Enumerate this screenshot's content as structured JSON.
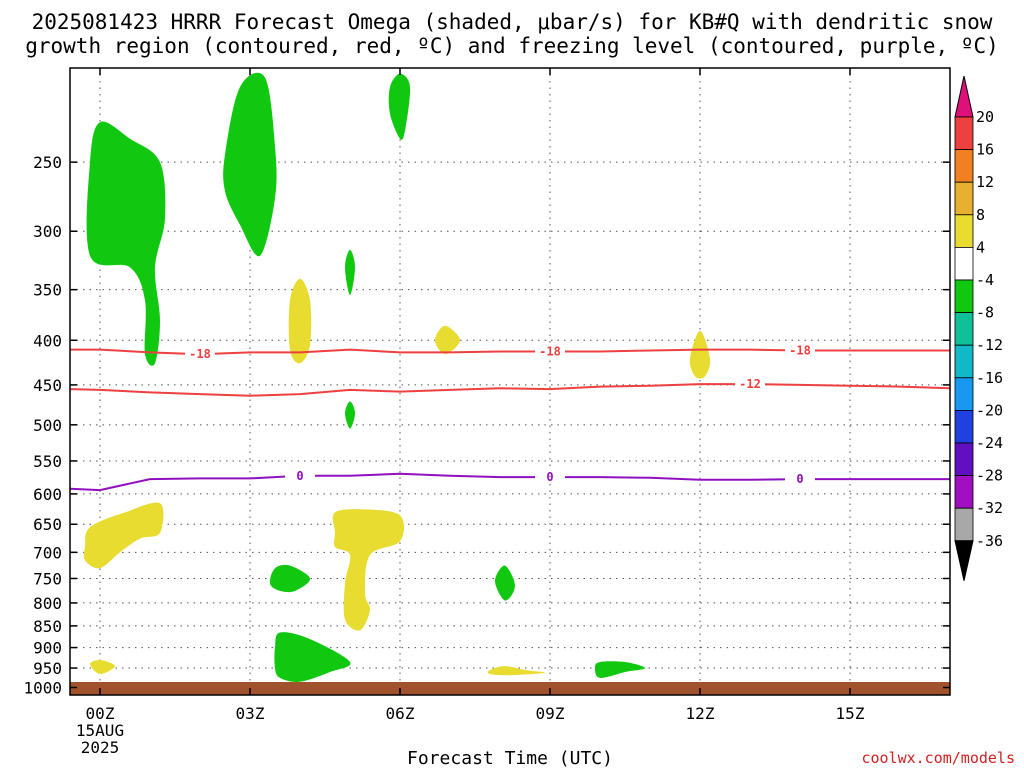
{
  "chart_data": {
    "type": "contour",
    "title_lines": [
      "2025081423 HRRR Forecast Omega (shaded, μbar/s) for KB#Q with dendritic snow",
      "growth region (contoured, red, ºC) and freezing level (contoured, purple, ºC)"
    ],
    "xlabel": "Forecast Time (UTC)",
    "x_ticks": [
      {
        "label": "00Z",
        "hour": 0,
        "sub": [
          "15AUG",
          "2025"
        ]
      },
      {
        "label": "03Z",
        "hour": 3
      },
      {
        "label": "06Z",
        "hour": 6
      },
      {
        "label": "09Z",
        "hour": 9
      },
      {
        "label": "12Z",
        "hour": 12
      },
      {
        "label": "15Z",
        "hour": 15
      }
    ],
    "xlim": [
      -0.6,
      17
    ],
    "y_scale": "log",
    "ylim": [
      1020,
      195
    ],
    "y_ticks": [
      250,
      300,
      350,
      400,
      450,
      500,
      550,
      600,
      650,
      700,
      750,
      800,
      850,
      900,
      950,
      1000
    ],
    "grid": "dotted",
    "ground_color": "#a0522d",
    "colorbar": {
      "top_arrow_color": "#e0107a",
      "bottom_arrow_color": "#000000",
      "bins": [
        {
          "from": 16,
          "to": 20,
          "color": "#ee4040"
        },
        {
          "from": 12,
          "to": 16,
          "color": "#f08020"
        },
        {
          "from": 8,
          "to": 12,
          "color": "#e8b030"
        },
        {
          "from": 4,
          "to": 8,
          "color": "#e8dc30"
        },
        {
          "from": -4,
          "to": 4,
          "color": "#ffffff"
        },
        {
          "from": -8,
          "to": -4,
          "color": "#10c810"
        },
        {
          "from": -12,
          "to": -8,
          "color": "#10c098"
        },
        {
          "from": -16,
          "to": -12,
          "color": "#10b8c8"
        },
        {
          "from": -20,
          "to": -16,
          "color": "#1898f0"
        },
        {
          "from": -24,
          "to": -20,
          "color": "#2040e0"
        },
        {
          "from": -28,
          "to": -24,
          "color": "#6010c0"
        },
        {
          "from": -32,
          "to": -28,
          "color": "#a010c0"
        },
        {
          "from": -36,
          "to": -32,
          "color": "#a8a8a8"
        }
      ],
      "labels": [
        20,
        16,
        12,
        8,
        4,
        -4,
        -8,
        -12,
        -16,
        -20,
        -24,
        -28,
        -32,
        -36
      ]
    },
    "contours": [
      {
        "value": -18,
        "color": "#ee4040",
        "label": "-18",
        "label_hours": [
          2.0,
          9.0,
          14.0
        ],
        "points": [
          [
            -0.6,
            410
          ],
          [
            0,
            410
          ],
          [
            1,
            413
          ],
          [
            2,
            415
          ],
          [
            3,
            413
          ],
          [
            4,
            413
          ],
          [
            5,
            410
          ],
          [
            6,
            413
          ],
          [
            7,
            413
          ],
          [
            8,
            412
          ],
          [
            9,
            412
          ],
          [
            10,
            412
          ],
          [
            11,
            411
          ],
          [
            12,
            410
          ],
          [
            13,
            410
          ],
          [
            14,
            411
          ],
          [
            15,
            411
          ],
          [
            16,
            411
          ],
          [
            17,
            411
          ]
        ]
      },
      {
        "value": -12,
        "color": "#ee4040",
        "label": "-12",
        "label_hours": [
          13.0
        ],
        "points": [
          [
            -0.6,
            455
          ],
          [
            0,
            456
          ],
          [
            1,
            459
          ],
          [
            2,
            461
          ],
          [
            3,
            463
          ],
          [
            4,
            461
          ],
          [
            5,
            456
          ],
          [
            6,
            458
          ],
          [
            7,
            456
          ],
          [
            8,
            454
          ],
          [
            9,
            455
          ],
          [
            10,
            452
          ],
          [
            11,
            451
          ],
          [
            12,
            449
          ],
          [
            13,
            449
          ],
          [
            14,
            450
          ],
          [
            15,
            451
          ],
          [
            16,
            452
          ],
          [
            17,
            454
          ]
        ]
      },
      {
        "value": 0,
        "color": "#9010c0",
        "label": "0",
        "label_hours": [
          4.0,
          9.0,
          14.0
        ],
        "points": [
          [
            -0.6,
            592
          ],
          [
            0,
            594
          ],
          [
            1,
            577
          ],
          [
            2,
            576
          ],
          [
            3,
            576
          ],
          [
            4,
            572
          ],
          [
            5,
            572
          ],
          [
            6,
            569
          ],
          [
            7,
            572
          ],
          [
            8,
            574
          ],
          [
            9,
            574
          ],
          [
            10,
            574
          ],
          [
            11,
            575
          ],
          [
            12,
            578
          ],
          [
            13,
            578
          ],
          [
            14,
            577
          ],
          [
            15,
            577
          ],
          [
            16,
            577
          ],
          [
            17,
            577
          ]
        ]
      }
    ],
    "shaded_regions": [
      {
        "color": "#10c810",
        "points": [
          [
            -0.2,
            320
          ],
          [
            -0.2,
            250
          ],
          [
            0,
            225
          ],
          [
            0.6,
            235
          ],
          [
            1.2,
            250
          ],
          [
            1.3,
            290
          ],
          [
            1.1,
            330
          ],
          [
            1.2,
            380
          ],
          [
            1.1,
            425
          ],
          [
            0.9,
            415
          ],
          [
            0.9,
            360
          ],
          [
            0.6,
            330
          ]
        ]
      },
      {
        "color": "#10c810",
        "points": [
          [
            2.5,
            245
          ],
          [
            2.8,
            205
          ],
          [
            3.3,
            200
          ],
          [
            3.5,
            240
          ],
          [
            3.5,
            275
          ],
          [
            3.2,
            320
          ],
          [
            2.8,
            295
          ],
          [
            2.5,
            270
          ]
        ]
      },
      {
        "color": "#10c810",
        "points": [
          [
            5.8,
            205
          ],
          [
            6.0,
            198
          ],
          [
            6.2,
            205
          ],
          [
            6.1,
            230
          ],
          [
            6.0,
            235
          ],
          [
            5.8,
            220
          ]
        ]
      },
      {
        "color": "#10c810",
        "points": [
          [
            4.9,
            330
          ],
          [
            5.0,
            315
          ],
          [
            5.1,
            330
          ],
          [
            5.0,
            355
          ]
        ]
      },
      {
        "color": "#10c810",
        "points": [
          [
            4.9,
            485
          ],
          [
            5.0,
            470
          ],
          [
            5.1,
            485
          ],
          [
            5.0,
            505
          ]
        ]
      },
      {
        "color": "#10c810",
        "points": [
          [
            3.4,
            760
          ],
          [
            3.5,
            730
          ],
          [
            3.8,
            725
          ],
          [
            4.2,
            750
          ],
          [
            3.9,
            775
          ],
          [
            3.6,
            775
          ]
        ]
      },
      {
        "color": "#10c810",
        "points": [
          [
            3.5,
            900
          ],
          [
            3.6,
            865
          ],
          [
            4.2,
            880
          ],
          [
            5.0,
            935
          ],
          [
            4.6,
            960
          ],
          [
            4.0,
            985
          ],
          [
            3.6,
            975
          ],
          [
            3.5,
            950
          ]
        ]
      },
      {
        "color": "#10c810",
        "points": [
          [
            7.9,
            755
          ],
          [
            8.1,
            725
          ],
          [
            8.3,
            765
          ],
          [
            8.1,
            795
          ]
        ]
      },
      {
        "color": "#10c810",
        "points": [
          [
            9.9,
            950
          ],
          [
            10.0,
            935
          ],
          [
            10.5,
            935
          ],
          [
            10.9,
            950
          ],
          [
            10.5,
            960
          ],
          [
            10.0,
            975
          ]
        ]
      },
      {
        "color": "#e8dc30",
        "points": [
          [
            3.8,
            360
          ],
          [
            4.0,
            340
          ],
          [
            4.2,
            360
          ],
          [
            4.2,
            405
          ],
          [
            4.0,
            425
          ],
          [
            3.8,
            410
          ]
        ]
      },
      {
        "color": "#e8dc30",
        "points": [
          [
            6.7,
            400
          ],
          [
            6.9,
            385
          ],
          [
            7.2,
            400
          ],
          [
            6.9,
            415
          ]
        ]
      },
      {
        "color": "#e8dc30",
        "points": [
          [
            11.8,
            420
          ],
          [
            12.0,
            390
          ],
          [
            12.2,
            420
          ],
          [
            12.1,
            440
          ],
          [
            11.9,
            440
          ]
        ]
      },
      {
        "color": "#e8dc30",
        "points": [
          [
            -0.3,
            690
          ],
          [
            -0.2,
            655
          ],
          [
            0.5,
            630
          ],
          [
            1.2,
            615
          ],
          [
            1.2,
            665
          ],
          [
            0.8,
            675
          ],
          [
            0.4,
            700
          ],
          [
            0,
            730
          ],
          [
            -0.3,
            715
          ]
        ]
      },
      {
        "color": "#e8dc30",
        "points": [
          [
            4.7,
            665
          ],
          [
            4.7,
            630
          ],
          [
            5.3,
            625
          ],
          [
            6.0,
            635
          ],
          [
            6.0,
            680
          ],
          [
            5.4,
            705
          ],
          [
            5.3,
            780
          ],
          [
            5.4,
            815
          ],
          [
            5.2,
            860
          ],
          [
            4.9,
            835
          ],
          [
            4.9,
            760
          ],
          [
            5.0,
            705
          ],
          [
            4.7,
            690
          ]
        ]
      },
      {
        "color": "#e8dc30",
        "points": [
          [
            -0.2,
            940
          ],
          [
            0,
            930
          ],
          [
            0.3,
            945
          ],
          [
            0,
            965
          ]
        ]
      },
      {
        "color": "#e8dc30",
        "points": [
          [
            7.8,
            955
          ],
          [
            8.1,
            945
          ],
          [
            8.5,
            955
          ],
          [
            8.9,
            962
          ],
          [
            8.2,
            968
          ],
          [
            7.8,
            965
          ]
        ]
      }
    ],
    "credit": "coolwx.com/models"
  }
}
